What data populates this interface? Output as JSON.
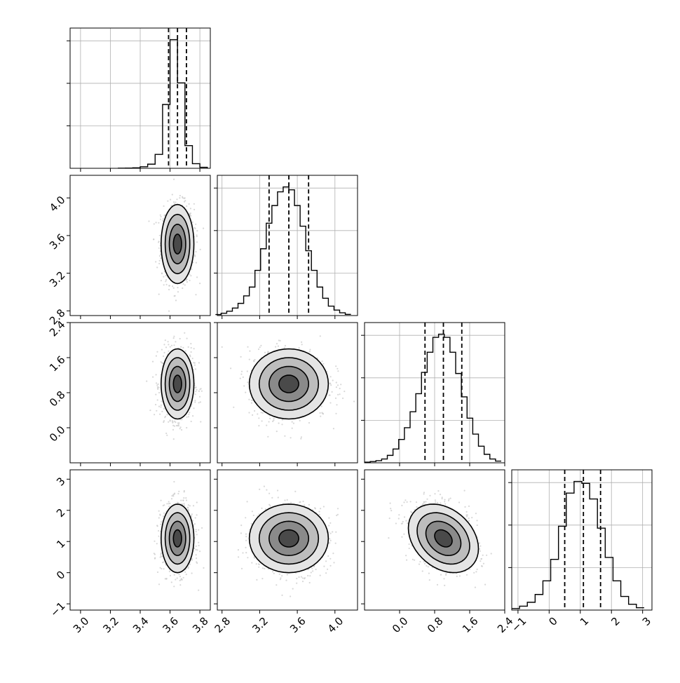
{
  "chart_data": {
    "type": "corner",
    "parameters": 4,
    "axis_ticks": [
      [
        3.0,
        3.2,
        3.4,
        3.6,
        3.8
      ],
      [
        2.8,
        3.2,
        3.6,
        4.0
      ],
      [
        0.0,
        0.8,
        1.6,
        2.4
      ],
      [
        -1,
        0,
        1,
        2,
        3
      ]
    ],
    "axis_tick_labels": [
      [
        "3.0",
        "3.2",
        "3.4",
        "3.6",
        "3.8"
      ],
      [
        "2.8",
        "3.2",
        "3.6",
        "4.0"
      ],
      [
        "0.0",
        "0.8",
        "1.6",
        "2.4"
      ],
      [
        "−1",
        "0",
        "1",
        "2",
        "3"
      ]
    ],
    "axis_ranges": [
      [
        2.93,
        3.87
      ],
      [
        2.75,
        4.24
      ],
      [
        -0.8,
        2.4
      ],
      [
        -1.2,
        3.3
      ]
    ],
    "marginals": [
      {
        "quantiles": [
          3.59,
          3.65,
          3.71
        ],
        "bins": [
          3.25,
          3.3,
          3.35,
          3.4,
          3.45,
          3.5,
          3.55,
          3.6,
          3.65,
          3.7,
          3.75,
          3.8,
          3.85
        ],
        "counts": [
          1,
          2,
          5,
          15,
          40,
          135,
          620,
          1250,
          830,
          220,
          45,
          10,
          0
        ]
      },
      {
        "quantiles": [
          3.3,
          3.51,
          3.72
        ],
        "bins": [
          2.73,
          2.79,
          2.85,
          2.91,
          2.97,
          3.03,
          3.09,
          3.15,
          3.21,
          3.27,
          3.33,
          3.39,
          3.45,
          3.51,
          3.57,
          3.63,
          3.69,
          3.75,
          3.81,
          3.87,
          3.93,
          3.99,
          4.05,
          4.11,
          4.17
        ],
        "counts": [
          5,
          12,
          22,
          38,
          62,
          100,
          145,
          230,
          340,
          470,
          560,
          630,
          655,
          640,
          560,
          455,
          330,
          230,
          145,
          88,
          48,
          28,
          14,
          6
        ]
      },
      {
        "quantiles": [
          0.58,
          1.0,
          1.42
        ],
        "bins": [
          -0.8,
          -0.67,
          -0.54,
          -0.41,
          -0.28,
          -0.15,
          -0.02,
          0.11,
          0.24,
          0.37,
          0.5,
          0.63,
          0.76,
          0.89,
          1.02,
          1.15,
          1.28,
          1.41,
          1.54,
          1.67,
          1.8,
          1.93,
          2.06,
          2.19,
          2.32
        ],
        "counts": [
          3,
          6,
          10,
          18,
          35,
          65,
          110,
          165,
          240,
          325,
          425,
          520,
          590,
          605,
          590,
          520,
          420,
          310,
          210,
          135,
          78,
          40,
          18,
          8
        ]
      },
      {
        "quantiles": [
          0.5,
          1.1,
          1.65
        ],
        "bins": [
          -1.2,
          -0.95,
          -0.7,
          -0.45,
          -0.2,
          0.05,
          0.3,
          0.55,
          0.8,
          1.05,
          1.3,
          1.55,
          1.8,
          2.05,
          2.3,
          2.55,
          2.8,
          3.05
        ],
        "counts": [
          8,
          20,
          40,
          80,
          150,
          260,
          430,
          600,
          660,
          650,
          570,
          420,
          270,
          150,
          70,
          30,
          12
        ]
      }
    ],
    "joint": [
      {
        "x": 0,
        "y": 1,
        "mean": [
          3.65,
          3.51
        ],
        "std": [
          0.055,
          0.21
        ],
        "rho": 0.0
      },
      {
        "x": 0,
        "y": 2,
        "mean": [
          3.65,
          1.0
        ],
        "std": [
          0.055,
          0.4
        ],
        "rho": 0.0
      },
      {
        "x": 1,
        "y": 2,
        "mean": [
          3.51,
          1.0
        ],
        "std": [
          0.21,
          0.4
        ],
        "rho": 0.0
      },
      {
        "x": 0,
        "y": 3,
        "mean": [
          3.65,
          1.1
        ],
        "std": [
          0.055,
          0.55
        ],
        "rho": 0.0
      },
      {
        "x": 1,
        "y": 3,
        "mean": [
          3.51,
          1.1
        ],
        "std": [
          0.21,
          0.55
        ],
        "rho": 0.0
      },
      {
        "x": 2,
        "y": 3,
        "mean": [
          1.0,
          1.1
        ],
        "std": [
          0.4,
          0.55
        ],
        "rho": -0.3
      }
    ],
    "contour_levels_sigma": [
      0.5,
      1.0,
      1.5,
      2.0
    ],
    "grid": true,
    "histogram_style": "step",
    "colors": {
      "line": "#000000",
      "grid": "#b0b0b0",
      "points": "#c8c8c8",
      "frame": "#000000"
    }
  }
}
